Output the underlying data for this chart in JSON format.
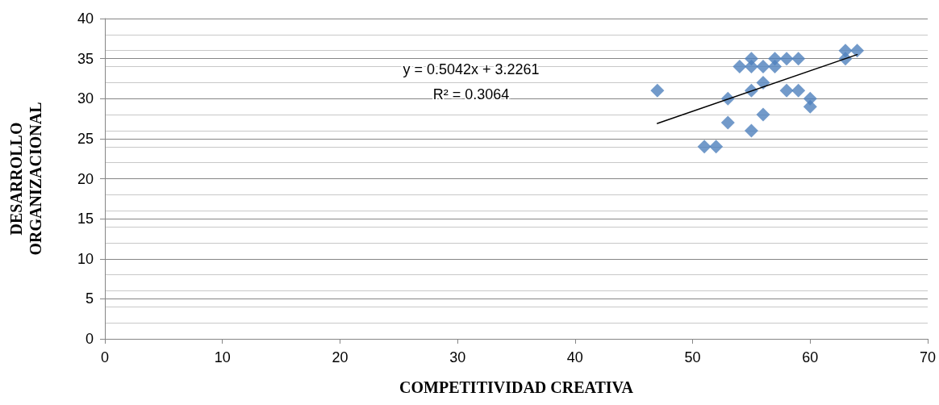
{
  "chart_data": {
    "type": "scatter",
    "xlabel": "COMPETITIVIDAD CREATIVA",
    "ylabel": "DESARROLLO ORGANIZACIONAL",
    "marker": "diamond",
    "grid": "y",
    "xlim": [
      0,
      70
    ],
    "xticks": [
      0,
      10,
      20,
      30,
      40,
      50,
      60,
      70
    ],
    "ylim": [
      0,
      40
    ],
    "yticks": [
      0,
      5,
      10,
      15,
      20,
      25,
      30,
      35,
      40
    ],
    "annotations": [
      "y = 0.5042x + 3.2261",
      "R² = 0.3064"
    ],
    "series": [
      {
        "color": "#4f81bd",
        "x": [
          47,
          51,
          52,
          53,
          53,
          54,
          55,
          55,
          55,
          55,
          56,
          56,
          56,
          57,
          57,
          58,
          58,
          59,
          59,
          60,
          60,
          63,
          63,
          64
        ],
        "values": [
          31,
          24,
          24,
          30,
          27,
          34,
          35,
          34,
          31,
          26,
          34,
          32,
          28,
          35,
          34,
          35,
          31,
          35,
          31,
          30,
          29,
          36,
          35,
          36
        ]
      },
      {
        "type": "line",
        "color": "#000000",
        "marker": "none",
        "x": [
          47,
          64
        ],
        "values": [
          26.9,
          35.5
        ]
      }
    ]
  }
}
